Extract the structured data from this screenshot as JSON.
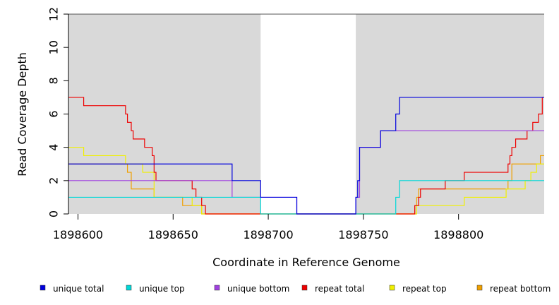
{
  "chart_data": {
    "type": "line",
    "title": "",
    "xlabel": "Coordinate in Reference Genome",
    "ylabel": "Read Coverage Depth",
    "xlim": [
      1898595,
      1898845
    ],
    "ylim": [
      0,
      12
    ],
    "x_ticks": [
      1898600,
      1898650,
      1898700,
      1898750,
      1898800
    ],
    "x_tick_labels": [
      "1898600",
      "1898650",
      "1898700",
      "1898750",
      "1898800"
    ],
    "y_ticks": [
      0,
      2,
      4,
      6,
      8,
      10,
      12
    ],
    "y_tick_labels": [
      "0",
      "2",
      "4",
      "6",
      "8",
      "10",
      "12"
    ],
    "shaded_regions": [
      {
        "x0": 1898595,
        "x1": 1898696,
        "color": "#d9d9d9"
      },
      {
        "x0": 1898746,
        "x1": 1898845,
        "color": "#d9d9d9"
      }
    ],
    "series": [
      {
        "name": "unique total",
        "color": "#0000dd",
        "x": [
          1898595,
          1898681,
          1898696,
          1898715,
          1898746,
          1898747,
          1898748,
          1898759,
          1898767,
          1898769,
          1898845
        ],
        "y": [
          3,
          2,
          1,
          0,
          1,
          2,
          4,
          5,
          6,
          7,
          7
        ]
      },
      {
        "name": "unique top",
        "color": "#00d8d8",
        "x": [
          1898595,
          1898696,
          1898767,
          1898769,
          1898845
        ],
        "y": [
          1,
          0,
          1,
          2,
          2
        ]
      },
      {
        "name": "unique bottom",
        "color": "#a040e0",
        "x": [
          1898595,
          1898681,
          1898696,
          1898715,
          1898746,
          1898748,
          1898759,
          1898845
        ],
        "y": [
          2,
          1,
          1,
          0,
          1,
          4,
          5,
          5
        ]
      },
      {
        "name": "repeat total",
        "color": "#ee0000",
        "x": [
          1898595,
          1898603,
          1898625,
          1898626,
          1898628,
          1898629,
          1898635,
          1898639,
          1898640,
          1898641,
          1898660,
          1898662,
          1898665,
          1898667,
          1898777,
          1898779,
          1898780,
          1898793,
          1898803,
          1898826,
          1898827,
          1898828,
          1898830,
          1898836,
          1898839,
          1898842,
          1898844,
          1898845
        ],
        "y": [
          7,
          6.5,
          6,
          5.5,
          5,
          4.5,
          4,
          3.5,
          2.5,
          2,
          1.5,
          1,
          0.5,
          0,
          0.5,
          1,
          1.5,
          2,
          2.5,
          3,
          3.5,
          4,
          4.5,
          5,
          5.5,
          6,
          7,
          7
        ]
      },
      {
        "name": "repeat top",
        "color": "#f0f000",
        "x": [
          1898595,
          1898603,
          1898625,
          1898634,
          1898640,
          1898660,
          1898665,
          1898778,
          1898803,
          1898825,
          1898835,
          1898838,
          1898841,
          1898845
        ],
        "y": [
          4,
          3.5,
          3,
          2.5,
          1,
          0.5,
          0,
          0.5,
          1,
          1.5,
          2,
          2.5,
          3,
          3
        ]
      },
      {
        "name": "repeat bottom",
        "color": "#f0a000",
        "x": [
          1898595,
          1898626,
          1898628,
          1898640,
          1898655,
          1898663,
          1898665,
          1898777,
          1898778,
          1898779,
          1898826,
          1898828,
          1898843,
          1898845
        ],
        "y": [
          3,
          2.5,
          1.5,
          1,
          0.5,
          0.5,
          0,
          0.5,
          1,
          1.5,
          2,
          3,
          3.5,
          3.5
        ]
      }
    ],
    "legend": {
      "position": "bottom",
      "items": [
        "unique total",
        "unique top",
        "unique bottom",
        "repeat total",
        "repeat top",
        "repeat bottom"
      ]
    }
  }
}
